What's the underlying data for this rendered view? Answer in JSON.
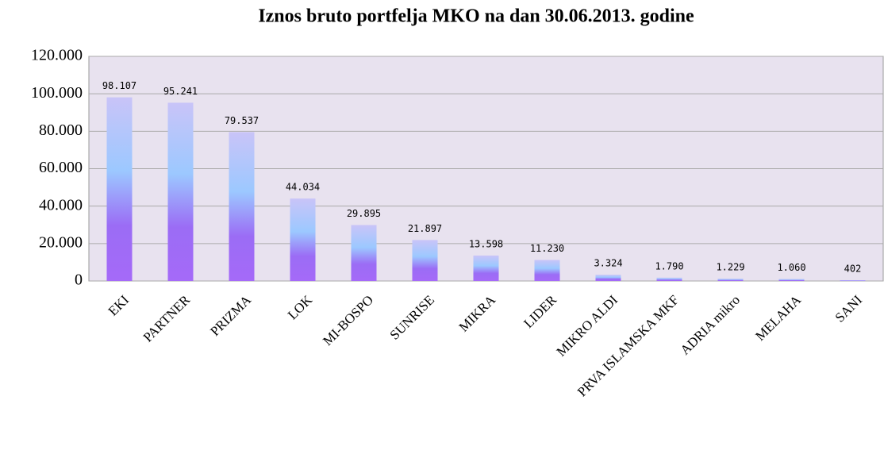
{
  "chart_data": {
    "type": "bar",
    "title": "Iznos bruto portfelja MKO na dan 30.06.2013. godine",
    "categories": [
      "EKI",
      "PARTNER",
      "PRIZMA",
      "LOK",
      "MI-BOSPO",
      "SUNRISE",
      "MIKRA",
      "LIDER",
      "MIKRO ALDI",
      "PRVA ISLAMSKA MKF",
      "ADRIA mikro",
      "MELAHA",
      "SANI"
    ],
    "values": [
      98107,
      95241,
      79537,
      44034,
      29895,
      21897,
      13598,
      11230,
      3324,
      1790,
      1229,
      1060,
      402
    ],
    "value_labels": [
      "98.107",
      "95.241",
      "79.537",
      "44.034",
      "29.895",
      "21.897",
      "13.598",
      "11.230",
      "3.324",
      "1.790",
      "1.229",
      "1.060",
      "402"
    ],
    "color": "#9a6cf5",
    "ylim": [
      0,
      120000
    ],
    "yticks": [
      0,
      {
        "value": 20000,
        "label": "20.000"
      },
      {
        "value": 40000,
        "label": "40.000"
      },
      {
        "value": 60000,
        "label": "60.000"
      },
      {
        "value": 80000,
        "label": "80.000"
      },
      {
        "value": 100000,
        "label": "100.000"
      },
      {
        "value": 120000,
        "label": "120.000"
      }
    ],
    "grid": true
  }
}
